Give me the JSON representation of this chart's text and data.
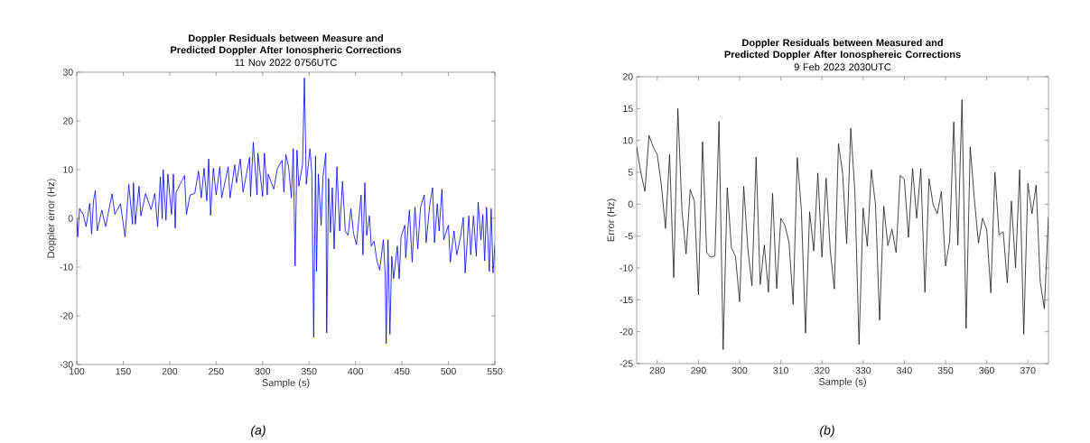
{
  "chart_data": [
    {
      "type": "line",
      "title": "Doppler Residuals between Measure and Predicted Doppler After Ionospheric Corrections",
      "subtitle": "11 Nov 2022 0756UTC",
      "xlabel": "Sample (s)",
      "ylabel": "Doppler error (Hz)",
      "annotations": [
        "(a)"
      ],
      "xlim": [
        100,
        550
      ],
      "ylim": [
        -30,
        30
      ],
      "xticks": [
        100,
        150,
        200,
        250,
        300,
        350,
        400,
        450,
        500,
        550
      ],
      "yticks": [
        -30,
        -20,
        -10,
        0,
        10,
        20,
        30
      ],
      "grid": false,
      "marker": "none",
      "line_style": "solid",
      "series": [
        {
          "color": "#0000ff",
          "x": [
            100,
            101,
            103,
            107,
            110,
            114,
            116,
            118,
            120,
            122,
            127,
            131,
            138,
            141,
            147,
            152,
            156,
            160,
            161,
            163,
            167,
            169,
            174,
            180,
            184,
            187,
            190,
            192,
            193,
            196,
            198,
            202,
            204,
            206,
            207,
            216,
            218,
            222,
            227,
            231,
            234,
            237,
            240,
            242,
            244,
            247,
            250,
            254,
            256,
            263,
            265,
            270,
            272,
            276,
            279,
            286,
            287,
            290,
            294,
            295,
            300,
            302,
            305,
            306,
            312,
            316,
            321,
            323,
            325,
            328,
            331,
            333,
            335,
            337,
            339,
            343,
            345,
            347,
            351,
            353,
            355,
            357,
            358,
            360,
            363,
            365,
            368,
            369,
            371,
            373,
            375,
            377,
            380,
            383,
            386,
            389,
            392,
            395,
            398,
            401,
            406,
            408,
            410,
            412,
            415,
            417,
            420,
            423,
            426,
            430,
            432,
            433,
            435,
            437,
            439,
            441,
            445,
            447,
            449,
            453,
            454,
            458,
            461,
            464,
            467,
            470,
            474,
            476,
            480,
            483,
            485,
            488,
            490,
            493,
            495,
            500,
            502,
            506,
            509,
            513,
            516,
            518,
            522,
            524,
            527,
            530,
            532,
            535,
            537,
            539,
            541,
            544,
            546,
            548,
            550
          ],
          "values": [
            0,
            -3.8,
            2,
            0.8,
            -1.7,
            3.1,
            -3.2,
            3.6,
            5.7,
            -2.6,
            1.7,
            -1.7,
            5,
            0.8,
            3,
            -3.8,
            7,
            -1.2,
            7.3,
            -1.2,
            6.6,
            0.5,
            5.1,
            1.8,
            5.1,
            -1.7,
            8.5,
            -0.1,
            10,
            -0.4,
            9.1,
            0.8,
            9.1,
            -2,
            5.4,
            8.8,
            0.8,
            4.8,
            5.1,
            9.7,
            4.2,
            10.3,
            3.6,
            12.2,
            0.6,
            10.3,
            4.8,
            10.6,
            4.2,
            10.6,
            4.2,
            11,
            7.3,
            12.2,
            5.4,
            12.5,
            4.5,
            15.6,
            4.8,
            13.4,
            4.5,
            13.4,
            4.8,
            9.1,
            6,
            10.3,
            11.9,
            5.4,
            13.1,
            10.6,
            4.2,
            14.3,
            -9.8,
            14,
            6.6,
            11,
            28.8,
            7,
            14.3,
            9.1,
            -24.4,
            12.8,
            -10.9,
            9.1,
            -1.4,
            8.5,
            13.4,
            -23.5,
            8.2,
            -2.9,
            6.3,
            -6.3,
            10.6,
            -2.6,
            7.6,
            -2.6,
            -3.5,
            2,
            -3.2,
            -5.4,
            4.8,
            -7.5,
            7.3,
            -3.5,
            0.5,
            -5.7,
            -4.7,
            -8.7,
            -10.6,
            -4.4,
            -11.8,
            -25.7,
            -4.4,
            -23.8,
            -7.8,
            -12.4,
            -5.7,
            -12.4,
            -3.8,
            -1.4,
            -8.1,
            1.7,
            -9,
            2.3,
            -6.3,
            2.3,
            4.8,
            -5,
            3,
            6.3,
            -5,
            3,
            -2.6,
            6,
            -4.4,
            -1.4,
            -9,
            -2.6,
            -7.5,
            -3.8,
            0.2,
            -11.2,
            0.5,
            -7.5,
            0.5,
            -7.8,
            3.3,
            -4.4,
            0.8,
            -8.7,
            2.3,
            -10.9,
            2,
            -11.2,
            -5.4
          ]
        }
      ]
    },
    {
      "type": "line",
      "title": "Doppler Residuals between Measured and Predicted Doppler After Ionosphereic Corrections",
      "subtitle": "9 Feb 2023 2030UTC",
      "xlabel": "Sample (s)",
      "ylabel": "Error (Hz)",
      "annotations": [
        "(b)"
      ],
      "xlim": [
        275,
        375
      ],
      "ylim": [
        -25,
        20
      ],
      "xticks": [
        280,
        290,
        300,
        310,
        320,
        330,
        340,
        350,
        360,
        370
      ],
      "yticks": [
        -25,
        -20,
        -15,
        -10,
        -5,
        0,
        5,
        10,
        15,
        20
      ],
      "grid": false,
      "marker": "none",
      "line_style": "solid",
      "series": [
        {
          "color": "#1a1a1a",
          "x": [
            275,
            276,
            277,
            278,
            279,
            280,
            281,
            282,
            283,
            284,
            285,
            286,
            287,
            288,
            289,
            290,
            291,
            292,
            293,
            294,
            295,
            296,
            297,
            298,
            299,
            300,
            301,
            302,
            303,
            304,
            305,
            306,
            307,
            308,
            309,
            310,
            311,
            312,
            313,
            314,
            315,
            316,
            317,
            318,
            319,
            320,
            321,
            322,
            323,
            324,
            325,
            326,
            327,
            328,
            329,
            330,
            331,
            332,
            333,
            334,
            335,
            336,
            337,
            338,
            339,
            340,
            341,
            342,
            343,
            344,
            345,
            346,
            347,
            348,
            349,
            350,
            351,
            352,
            353,
            354,
            355,
            356,
            357,
            358,
            359,
            360,
            361,
            362,
            363,
            364,
            365,
            366,
            367,
            368,
            369,
            370,
            371,
            372,
            373,
            374,
            375
          ],
          "values": [
            9,
            5,
            2,
            10.8,
            9,
            7.8,
            3,
            -3.8,
            7.8,
            -11.5,
            15,
            -1,
            -7.8,
            2.3,
            0.5,
            -14.2,
            9.8,
            -7.6,
            -8.3,
            -8.1,
            13,
            -22.8,
            2.6,
            -6.8,
            -8.2,
            -15.3,
            2.8,
            -7,
            -12.8,
            7.4,
            -12.6,
            -6.4,
            -13.8,
            1.7,
            -13.2,
            -2.2,
            -3.3,
            -6,
            -15.7,
            7.3,
            -1,
            -20.2,
            -1.2,
            -7.3,
            4.9,
            -8.3,
            4.1,
            -7.2,
            -13.3,
            9.5,
            5,
            -6.2,
            11.9,
            1.8,
            -22,
            -0.6,
            -6.6,
            5.4,
            -0.1,
            -18.2,
            -0.3,
            -6.5,
            -3.9,
            -7.6,
            4.5,
            3.9,
            -5.2,
            5.6,
            -2.2,
            5.6,
            -13.8,
            4,
            -0.1,
            -1.5,
            2,
            -9.7,
            -5.8,
            12.9,
            -6.4,
            16.4,
            -19.5,
            9,
            0.8,
            -6.1,
            -2.2,
            -4,
            -13.9,
            5,
            -4.8,
            -4.3,
            -12.3,
            0.5,
            -10,
            5.4,
            -20.4,
            3.3,
            -1.5,
            3,
            -12.2,
            -16.4,
            -2
          ]
        }
      ]
    }
  ]
}
